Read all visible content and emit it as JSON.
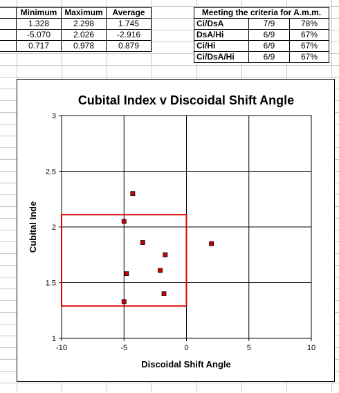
{
  "stats_table": {
    "headers": [
      "Minimum",
      "Maximum",
      "Average"
    ],
    "rows": [
      [
        "1.328",
        "2.298",
        "1.745"
      ],
      [
        "-5.070",
        "2.026",
        "-2.916"
      ],
      [
        "0.717",
        "0.978",
        "0.879"
      ]
    ]
  },
  "criteria_table": {
    "header": "Meeting the criteria for A.m.m.",
    "rows": [
      {
        "name": "Ci/DsA",
        "fraction": "7/9",
        "percent": "78%"
      },
      {
        "name": "DsA/Hi",
        "fraction": "6/9",
        "percent": "67%"
      },
      {
        "name": "Ci/Hi",
        "fraction": "6/9",
        "percent": "67%"
      },
      {
        "name": "Ci/DsA/Hi",
        "fraction": "6/9",
        "percent": "67%"
      }
    ]
  },
  "chart_data": {
    "type": "scatter",
    "title": "Cubital Index v Discoidal Shift Angle",
    "xlabel": "Discoidal Shift Angle",
    "ylabel": "Cubital Inde",
    "xlim": [
      -10,
      10
    ],
    "ylim": [
      1,
      3
    ],
    "x_ticks": [
      -10,
      -5,
      0,
      5,
      10
    ],
    "y_ticks": [
      1,
      1.5,
      2,
      2.5,
      3
    ],
    "x_tick_labels": [
      "-10",
      "-5",
      "0",
      "5",
      "10"
    ],
    "y_tick_labels": [
      "1",
      "1.5",
      "2",
      "2.5",
      "3"
    ],
    "grid": true,
    "points": [
      {
        "x": -4.3,
        "y": 2.3
      },
      {
        "x": -5.0,
        "y": 2.05
      },
      {
        "x": -3.5,
        "y": 1.86
      },
      {
        "x": 2.0,
        "y": 1.85
      },
      {
        "x": -1.7,
        "y": 1.75
      },
      {
        "x": -2.1,
        "y": 1.61
      },
      {
        "x": -4.8,
        "y": 1.58
      },
      {
        "x": -1.8,
        "y": 1.4
      },
      {
        "x": -5.0,
        "y": 1.33
      }
    ],
    "criteria_box": {
      "x": [
        -10,
        0
      ],
      "y": [
        1.29,
        2.11
      ]
    },
    "marker_color": "#cc0000",
    "box_color": "#dd0000"
  }
}
